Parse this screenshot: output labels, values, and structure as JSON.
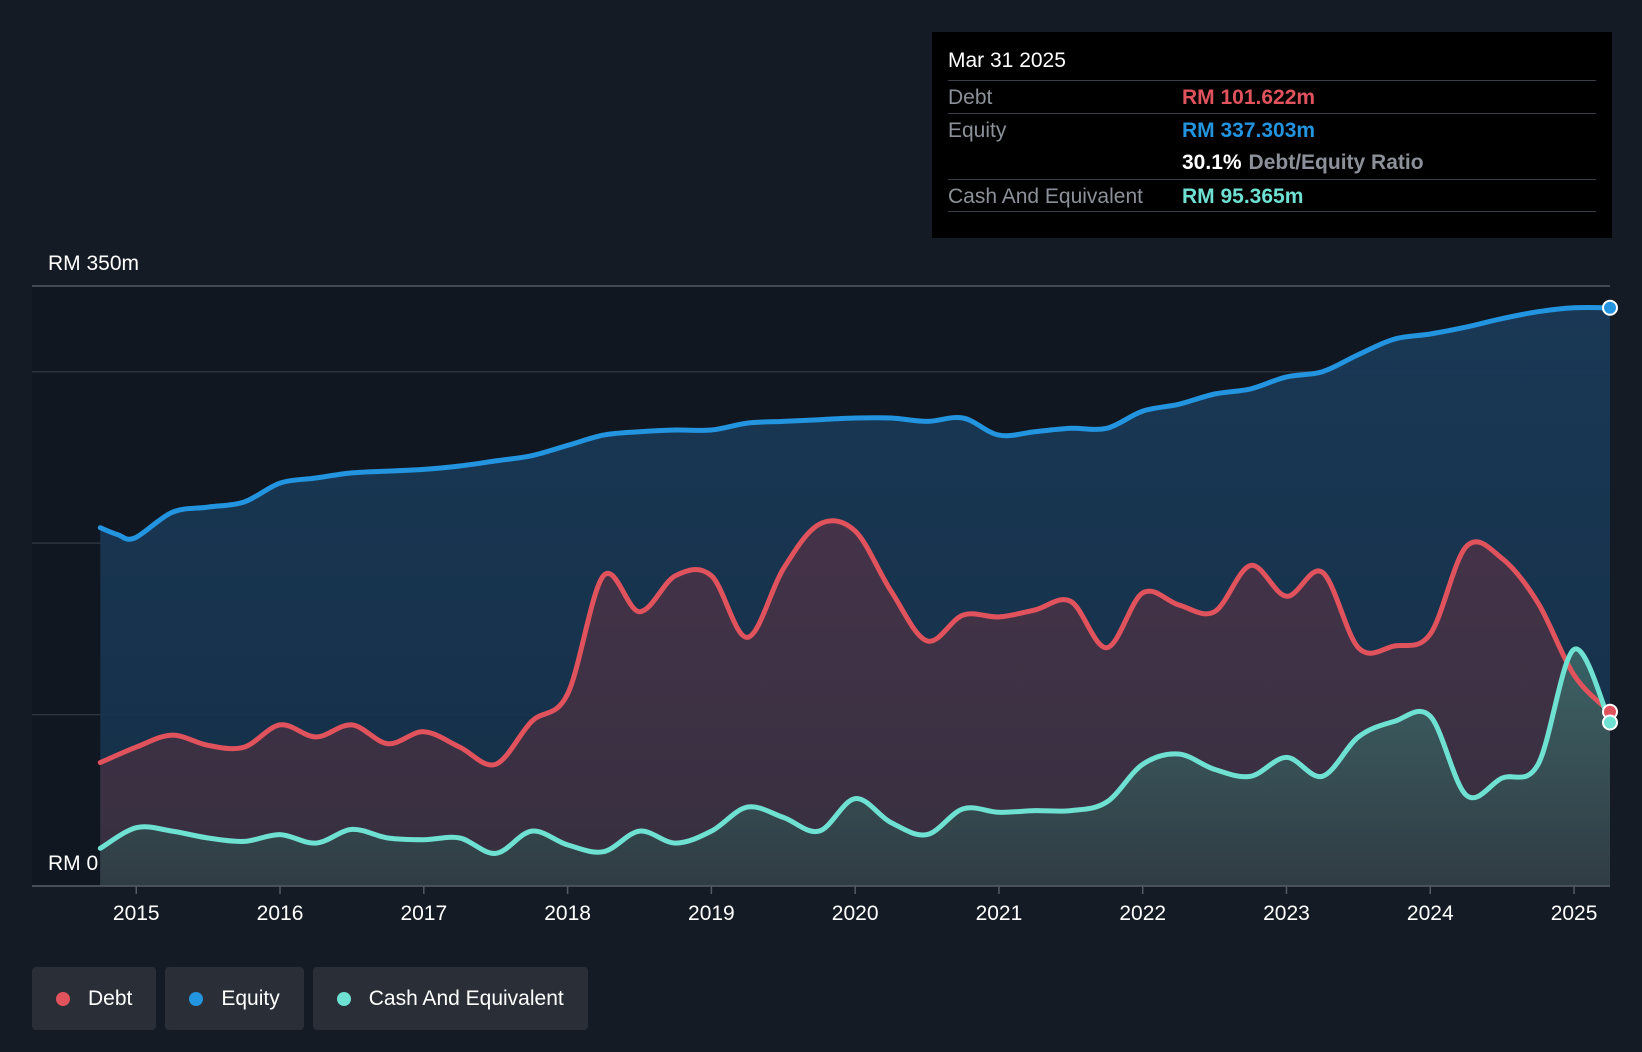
{
  "chart_data": {
    "type": "area",
    "currency_prefix": "RM",
    "y_axis": {
      "top_label": "RM 350m",
      "bottom_label": "RM 0",
      "ylim": [
        0,
        350
      ],
      "gridlines": [
        0,
        100,
        200,
        300,
        350
      ]
    },
    "x_ticks": [
      "2015",
      "2016",
      "2017",
      "2018",
      "2019",
      "2020",
      "2021",
      "2022",
      "2023",
      "2024",
      "2025"
    ],
    "xlim": [
      2014.72,
      2025.25
    ],
    "series": [
      {
        "name": "Equity",
        "color": "#2394df",
        "points": [
          [
            2014.75,
            209
          ],
          [
            2014.87,
            205
          ],
          [
            2014.99,
            203
          ],
          [
            2015.25,
            218
          ],
          [
            2015.5,
            221
          ],
          [
            2015.75,
            224
          ],
          [
            2016.0,
            235
          ],
          [
            2016.25,
            238
          ],
          [
            2016.5,
            241
          ],
          [
            2016.75,
            242
          ],
          [
            2017.0,
            243
          ],
          [
            2017.25,
            245
          ],
          [
            2017.5,
            248
          ],
          [
            2017.75,
            251
          ],
          [
            2018.0,
            257
          ],
          [
            2018.25,
            263
          ],
          [
            2018.5,
            265
          ],
          [
            2018.75,
            266
          ],
          [
            2019.0,
            266
          ],
          [
            2019.25,
            270
          ],
          [
            2019.5,
            271
          ],
          [
            2019.75,
            272
          ],
          [
            2020.0,
            273
          ],
          [
            2020.25,
            273
          ],
          [
            2020.5,
            271
          ],
          [
            2020.75,
            273
          ],
          [
            2021.0,
            263
          ],
          [
            2021.25,
            265
          ],
          [
            2021.5,
            267
          ],
          [
            2021.75,
            267
          ],
          [
            2022.0,
            277
          ],
          [
            2022.25,
            281
          ],
          [
            2022.5,
            287
          ],
          [
            2022.75,
            290
          ],
          [
            2023.0,
            297
          ],
          [
            2023.25,
            300
          ],
          [
            2023.5,
            310
          ],
          [
            2023.75,
            319
          ],
          [
            2024.0,
            322
          ],
          [
            2024.25,
            326
          ],
          [
            2024.5,
            331
          ],
          [
            2024.75,
            335
          ],
          [
            2025.0,
            337.303
          ],
          [
            2025.25,
            337.303
          ]
        ]
      },
      {
        "name": "Debt",
        "color": "#e0525c",
        "points": [
          [
            2014.75,
            72
          ],
          [
            2015.0,
            81
          ],
          [
            2015.25,
            88
          ],
          [
            2015.5,
            82
          ],
          [
            2015.75,
            81
          ],
          [
            2016.0,
            94
          ],
          [
            2016.25,
            87
          ],
          [
            2016.5,
            94
          ],
          [
            2016.75,
            83
          ],
          [
            2017.0,
            90
          ],
          [
            2017.25,
            81
          ],
          [
            2017.5,
            71
          ],
          [
            2017.75,
            96
          ],
          [
            2018.0,
            112
          ],
          [
            2018.25,
            181
          ],
          [
            2018.5,
            160
          ],
          [
            2018.75,
            181
          ],
          [
            2019.0,
            181
          ],
          [
            2019.25,
            145
          ],
          [
            2019.5,
            185
          ],
          [
            2019.75,
            211
          ],
          [
            2020.0,
            207
          ],
          [
            2020.25,
            172
          ],
          [
            2020.5,
            143
          ],
          [
            2020.75,
            158
          ],
          [
            2021.0,
            157
          ],
          [
            2021.25,
            161
          ],
          [
            2021.5,
            166
          ],
          [
            2021.75,
            139
          ],
          [
            2022.0,
            171
          ],
          [
            2022.25,
            164
          ],
          [
            2022.5,
            160
          ],
          [
            2022.75,
            187
          ],
          [
            2023.0,
            169
          ],
          [
            2023.25,
            183
          ],
          [
            2023.5,
            139
          ],
          [
            2023.75,
            140
          ],
          [
            2024.0,
            147
          ],
          [
            2024.25,
            198
          ],
          [
            2024.5,
            191
          ],
          [
            2024.75,
            165
          ],
          [
            2025.0,
            123
          ],
          [
            2025.25,
            101.622
          ]
        ]
      },
      {
        "name": "Cash And Equivalent",
        "color": "#6ee1d2",
        "points": [
          [
            2014.75,
            22
          ],
          [
            2015.0,
            34
          ],
          [
            2015.25,
            32
          ],
          [
            2015.5,
            28
          ],
          [
            2015.75,
            26
          ],
          [
            2016.0,
            30
          ],
          [
            2016.25,
            25
          ],
          [
            2016.5,
            33
          ],
          [
            2016.75,
            28
          ],
          [
            2017.0,
            27
          ],
          [
            2017.25,
            28
          ],
          [
            2017.5,
            19
          ],
          [
            2017.75,
            32
          ],
          [
            2018.0,
            24
          ],
          [
            2018.25,
            20
          ],
          [
            2018.5,
            32
          ],
          [
            2018.75,
            25
          ],
          [
            2019.0,
            32
          ],
          [
            2019.25,
            46
          ],
          [
            2019.5,
            40
          ],
          [
            2019.75,
            32
          ],
          [
            2020.0,
            51
          ],
          [
            2020.25,
            37
          ],
          [
            2020.5,
            30
          ],
          [
            2020.75,
            45
          ],
          [
            2021.0,
            43
          ],
          [
            2021.25,
            44
          ],
          [
            2021.5,
            44
          ],
          [
            2021.75,
            49
          ],
          [
            2022.0,
            71
          ],
          [
            2022.25,
            77
          ],
          [
            2022.5,
            68
          ],
          [
            2022.75,
            64
          ],
          [
            2023.0,
            75
          ],
          [
            2023.25,
            64
          ],
          [
            2023.5,
            87
          ],
          [
            2023.75,
            96
          ],
          [
            2024.0,
            99
          ],
          [
            2024.25,
            53
          ],
          [
            2024.5,
            63
          ],
          [
            2024.75,
            71
          ],
          [
            2025.0,
            138
          ],
          [
            2025.25,
            95.365
          ]
        ]
      }
    ],
    "tooltip": {
      "date": "Mar 31 2025",
      "debt_label": "Debt",
      "debt_value": "RM 101.622m",
      "equity_label": "Equity",
      "equity_value": "RM 337.303m",
      "ratio_value": "30.1%",
      "ratio_label": "Debt/Equity Ratio",
      "cash_label": "Cash And Equivalent",
      "cash_value": "RM 95.365m"
    },
    "legend": {
      "placement": "bottom-left",
      "items": [
        "Debt",
        "Equity",
        "Cash And Equivalent"
      ]
    }
  }
}
